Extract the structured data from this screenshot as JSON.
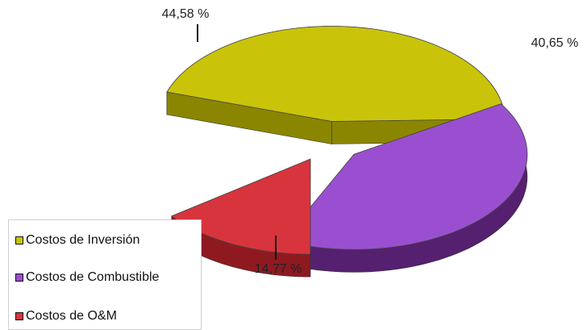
{
  "chart_data": {
    "type": "pie",
    "title": "",
    "slices": [
      {
        "label": "Costos de Inversión",
        "value": 44.58,
        "value_label": "44,58 %",
        "color": "#c9c40a",
        "side_color": "#8a8600"
      },
      {
        "label": "Costos de Combustible",
        "value": 40.65,
        "value_label": "40,65 %",
        "color": "#9a4fd0",
        "side_color": "#55206f"
      },
      {
        "label": "Costos de O&M",
        "value": 14.77,
        "value_label": "14,77 %",
        "color": "#d8343e",
        "side_color": "#8e1a20"
      }
    ],
    "exploded": true,
    "style": "3d",
    "legend_position": "bottom-left"
  }
}
